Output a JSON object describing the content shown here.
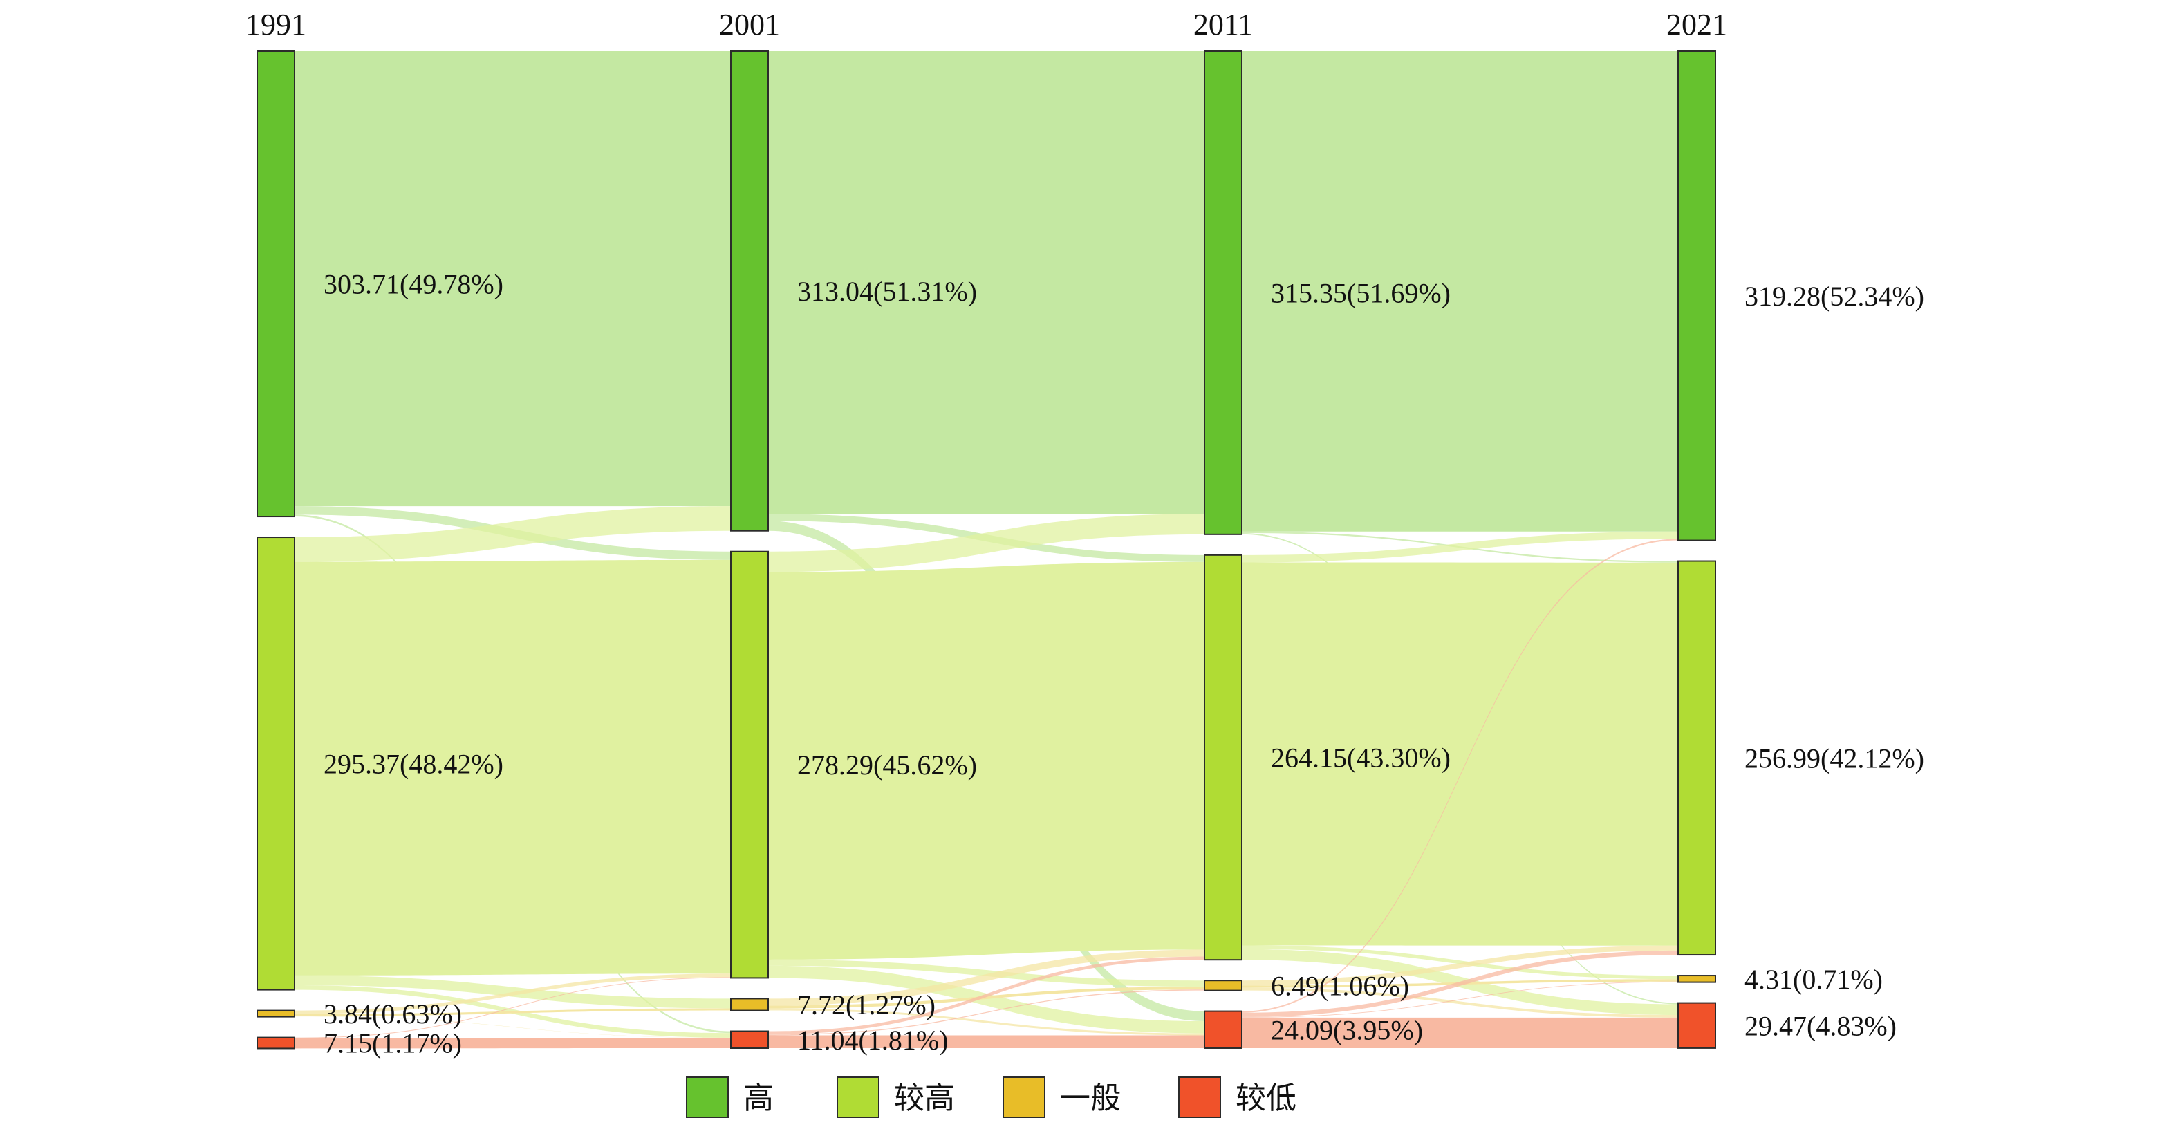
{
  "chart_data": {
    "type": "sankey",
    "years": [
      "1991",
      "2001",
      "2011",
      "2021"
    ],
    "categories": [
      {
        "key": "high",
        "name": "高",
        "color": "#66c22e",
        "flow_color": "#c4e8a2"
      },
      {
        "key": "higher",
        "name": "较高",
        "color": "#b0dc34",
        "flow_color": "#e0f1a0"
      },
      {
        "key": "general",
        "name": "一般",
        "color": "#e8bd28",
        "flow_color": "#f4e6a4"
      },
      {
        "key": "lower",
        "name": "较低",
        "color": "#f0522a",
        "flow_color": "#f8b9a2"
      }
    ],
    "nodes": [
      {
        "year": "1991",
        "category": "high",
        "value": 303.71,
        "label": "303.71(49.78%)"
      },
      {
        "year": "1991",
        "category": "higher",
        "value": 295.37,
        "label": "295.37(48.42%)"
      },
      {
        "year": "1991",
        "category": "general",
        "value": 3.84,
        "label": "3.84(0.63%)"
      },
      {
        "year": "1991",
        "category": "lower",
        "value": 7.15,
        "label": "7.15(1.17%)"
      },
      {
        "year": "2001",
        "category": "high",
        "value": 313.04,
        "label": "313.04(51.31%)"
      },
      {
        "year": "2001",
        "category": "higher",
        "value": 278.29,
        "label": "278.29(45.62%)"
      },
      {
        "year": "2001",
        "category": "general",
        "value": 7.72,
        "label": "7.72(1.27%)"
      },
      {
        "year": "2001",
        "category": "lower",
        "value": 11.04,
        "label": "11.04(1.81%)"
      },
      {
        "year": "2011",
        "category": "high",
        "value": 315.35,
        "label": "315.35(51.69%)"
      },
      {
        "year": "2011",
        "category": "higher",
        "value": 264.15,
        "label": "264.15(43.30%)"
      },
      {
        "year": "2011",
        "category": "general",
        "value": 6.49,
        "label": "6.49(1.06%)"
      },
      {
        "year": "2011",
        "category": "lower",
        "value": 24.09,
        "label": "24.09(3.95%)"
      },
      {
        "year": "2021",
        "category": "high",
        "value": 319.28,
        "label": "319.28(52.34%)"
      },
      {
        "year": "2021",
        "category": "higher",
        "value": 256.99,
        "label": "256.99(42.12%)"
      },
      {
        "year": "2021",
        "category": "general",
        "value": 4.31,
        "label": "4.31(0.71%)"
      },
      {
        "year": "2021",
        "category": "lower",
        "value": 29.47,
        "label": "29.47(4.83%)"
      }
    ],
    "flows": [
      {
        "from": "1991",
        "to": "2001",
        "source": "high",
        "target": "high",
        "value": 297.0
      },
      {
        "from": "1991",
        "to": "2001",
        "source": "high",
        "target": "higher",
        "value": 5.5
      },
      {
        "from": "1991",
        "to": "2001",
        "source": "high",
        "target": "lower",
        "value": 1.21
      },
      {
        "from": "1991",
        "to": "2001",
        "source": "higher",
        "target": "high",
        "value": 16.04
      },
      {
        "from": "1991",
        "to": "2001",
        "source": "higher",
        "target": "higher",
        "value": 270.0
      },
      {
        "from": "1991",
        "to": "2001",
        "source": "higher",
        "target": "general",
        "value": 6.33
      },
      {
        "from": "1991",
        "to": "2001",
        "source": "higher",
        "target": "lower",
        "value": 3.0
      },
      {
        "from": "1991",
        "to": "2001",
        "source": "general",
        "target": "higher",
        "value": 2.3
      },
      {
        "from": "1991",
        "to": "2001",
        "source": "general",
        "target": "general",
        "value": 1.39
      },
      {
        "from": "1991",
        "to": "2001",
        "source": "general",
        "target": "lower",
        "value": 0.15
      },
      {
        "from": "1991",
        "to": "2001",
        "source": "lower",
        "target": "higher",
        "value": 0.49
      },
      {
        "from": "1991",
        "to": "2001",
        "source": "lower",
        "target": "lower",
        "value": 6.66
      },
      {
        "from": "2001",
        "to": "2011",
        "source": "high",
        "target": "high",
        "value": 302.0
      },
      {
        "from": "2001",
        "to": "2011",
        "source": "high",
        "target": "higher",
        "value": 4.54
      },
      {
        "from": "2001",
        "to": "2011",
        "source": "high",
        "target": "lower",
        "value": 6.5
      },
      {
        "from": "2001",
        "to": "2011",
        "source": "higher",
        "target": "high",
        "value": 13.35
      },
      {
        "from": "2001",
        "to": "2011",
        "source": "higher",
        "target": "higher",
        "value": 253.0
      },
      {
        "from": "2001",
        "to": "2011",
        "source": "higher",
        "target": "general",
        "value": 4.0
      },
      {
        "from": "2001",
        "to": "2011",
        "source": "higher",
        "target": "lower",
        "value": 7.94
      },
      {
        "from": "2001",
        "to": "2011",
        "source": "general",
        "target": "higher",
        "value": 4.5
      },
      {
        "from": "2001",
        "to": "2011",
        "source": "general",
        "target": "general",
        "value": 1.9
      },
      {
        "from": "2001",
        "to": "2011",
        "source": "general",
        "target": "lower",
        "value": 1.32
      },
      {
        "from": "2001",
        "to": "2011",
        "source": "lower",
        "target": "higher",
        "value": 2.11
      },
      {
        "from": "2001",
        "to": "2011",
        "source": "lower",
        "target": "general",
        "value": 0.59
      },
      {
        "from": "2001",
        "to": "2011",
        "source": "lower",
        "target": "lower",
        "value": 8.34
      },
      {
        "from": "2011",
        "to": "2021",
        "source": "high",
        "target": "high",
        "value": 313.5
      },
      {
        "from": "2011",
        "to": "2021",
        "source": "high",
        "target": "higher",
        "value": 1.0
      },
      {
        "from": "2011",
        "to": "2021",
        "source": "high",
        "target": "lower",
        "value": 0.85
      },
      {
        "from": "2011",
        "to": "2021",
        "source": "higher",
        "target": "high",
        "value": 4.8
      },
      {
        "from": "2011",
        "to": "2021",
        "source": "higher",
        "target": "higher",
        "value": 250.0
      },
      {
        "from": "2011",
        "to": "2021",
        "source": "higher",
        "target": "general",
        "value": 2.35
      },
      {
        "from": "2011",
        "to": "2021",
        "source": "higher",
        "target": "lower",
        "value": 7.0
      },
      {
        "from": "2011",
        "to": "2021",
        "source": "general",
        "target": "higher",
        "value": 3.2
      },
      {
        "from": "2011",
        "to": "2021",
        "source": "general",
        "target": "general",
        "value": 1.55
      },
      {
        "from": "2011",
        "to": "2021",
        "source": "general",
        "target": "lower",
        "value": 1.74
      },
      {
        "from": "2011",
        "to": "2021",
        "source": "lower",
        "target": "high",
        "value": 0.98
      },
      {
        "from": "2011",
        "to": "2021",
        "source": "lower",
        "target": "higher",
        "value": 2.79
      },
      {
        "from": "2011",
        "to": "2021",
        "source": "lower",
        "target": "general",
        "value": 0.41
      },
      {
        "from": "2011",
        "to": "2021",
        "source": "lower",
        "target": "lower",
        "value": 19.91
      }
    ],
    "legend": {
      "position": "bottom-center"
    }
  }
}
